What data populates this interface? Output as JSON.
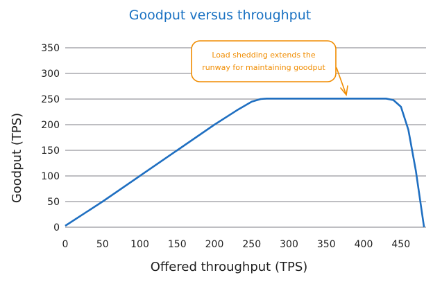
{
  "chart_data": {
    "type": "line",
    "title": "Goodput versus throughput",
    "xlabel": "Offered throughput (TPS)",
    "ylabel": "Goodput (TPS)",
    "xlim": [
      0,
      480
    ],
    "ylim": [
      0,
      350
    ],
    "xticks": [
      "0",
      "50",
      "100",
      "150",
      "200",
      "250",
      "300",
      "350",
      "400",
      "450"
    ],
    "yticks": [
      "0",
      "50",
      "100",
      "150",
      "200",
      "250",
      "300",
      "350"
    ],
    "grid": "horizontal",
    "series": [
      {
        "name": "Goodput",
        "x": [
          0,
          50,
          100,
          150,
          200,
          230,
          250,
          262,
          270,
          300,
          350,
          400,
          430,
          440,
          450,
          460,
          470,
          481
        ],
        "y": [
          0,
          50,
          100,
          150,
          200,
          228,
          245,
          250,
          251,
          251,
          251,
          251,
          251,
          248,
          235,
          190,
          110,
          0
        ]
      }
    ],
    "annotation": {
      "text_lines": [
        "Load shedding extends the",
        "runway for maintaining goodput"
      ],
      "points_to_x": 380,
      "points_to_y": 251
    }
  },
  "colors": {
    "title": "#1971c2",
    "line": "#1f6fc1",
    "annotation": "#f08c00",
    "grid": "#a8a8ad"
  }
}
